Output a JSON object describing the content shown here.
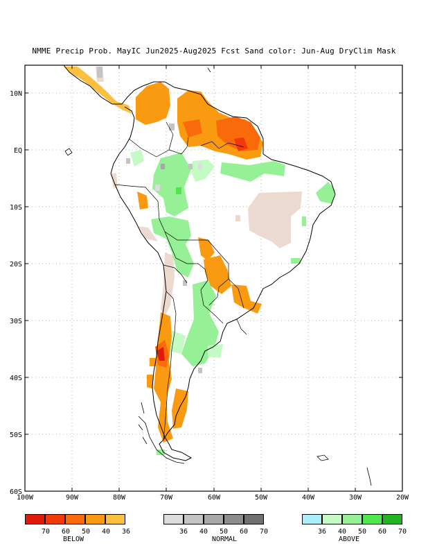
{
  "title": "NMME Precip Prob. MayIC  Jun2025-Aug2025 Fcst  Sand color: Jun-Aug DryClim Mask",
  "map": {
    "lon_range": [
      -100,
      -20
    ],
    "lat_range": [
      -60,
      15
    ],
    "lat_labels": [
      "10N",
      "EQ",
      "10S",
      "20S",
      "30S",
      "40S",
      "50S",
      "60S"
    ],
    "lon_labels": [
      "100W",
      "90W",
      "80W",
      "70W",
      "60W",
      "50W",
      "40W",
      "30W",
      "20W"
    ],
    "colors": {
      "below_70": "#e01a0a",
      "below_60": "#f03a0a",
      "below_50": "#f86a0a",
      "below_40": "#fa9a10",
      "below_36": "#fcc040",
      "normal_36": "#dcdcdc",
      "normal_40": "#c4c4c4",
      "normal_50": "#a8a8a8",
      "normal_60": "#8c8c8c",
      "normal_70": "#707070",
      "above_36": "#aaeefa",
      "above_40": "#c4fac4",
      "above_50": "#96f096",
      "above_60": "#50e650",
      "above_70": "#22b422",
      "dry_mask": "#ecd9cf"
    }
  },
  "legend": {
    "below": {
      "caption": "BELOW",
      "ticks": [
        "70",
        "60",
        "50",
        "40",
        "36"
      ]
    },
    "normal": {
      "caption": "NORMAL",
      "ticks": [
        "36",
        "40",
        "50",
        "60",
        "70"
      ]
    },
    "above": {
      "caption": "ABOVE",
      "ticks": [
        "36",
        "40",
        "50",
        "60",
        "70"
      ]
    }
  }
}
